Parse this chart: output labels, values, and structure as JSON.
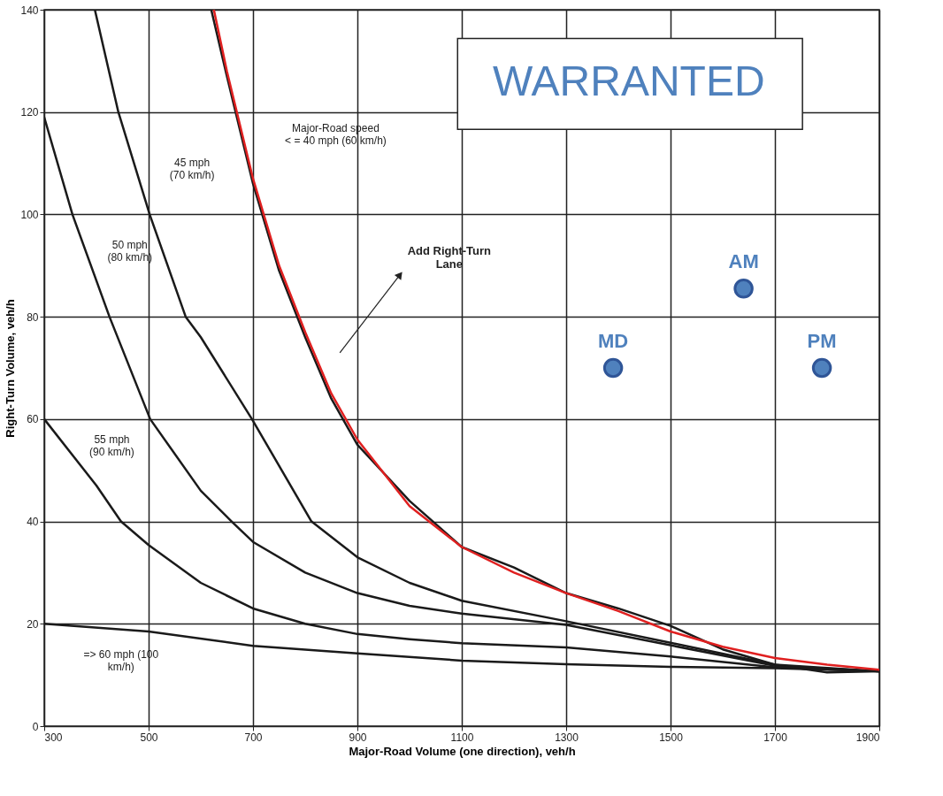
{
  "chart_data": {
    "type": "line",
    "xlabel": "Major-Road Volume (one direction), veh/h",
    "ylabel": "Right-Turn Volume, veh/h",
    "xlim": [
      300,
      1900
    ],
    "xticks": [
      300,
      500,
      700,
      900,
      1100,
      1300,
      1500,
      1700,
      1900
    ],
    "ylim": [
      0,
      140
    ],
    "yticks": [
      0,
      20,
      40,
      60,
      80,
      100,
      120,
      140
    ],
    "grid": true,
    "marker": "none",
    "line_style": "solid",
    "series": [
      {
        "color": "#1a1a1a",
        "x": [
          620,
          650,
          700,
          750,
          800,
          850,
          900,
          1000,
          1100,
          1200,
          1300,
          1400,
          1500,
          1600,
          1700,
          1800,
          1900
        ],
        "values": [
          140,
          127,
          106,
          89,
          76,
          64,
          55,
          44,
          35,
          31,
          26,
          23,
          19.6,
          15,
          12,
          10.5,
          10.7
        ]
      },
      {
        "color": "#1a1a1a",
        "x": [
          397,
          442,
          502,
          571,
          600,
          698,
          812,
          900,
          1000,
          1100,
          1300,
          1500,
          1700,
          1900
        ],
        "values": [
          140,
          120,
          100,
          80,
          76,
          60,
          40,
          33,
          28,
          24.5,
          20.5,
          16.3,
          12,
          10.7
        ]
      },
      {
        "color": "#1a1a1a",
        "x": [
          300,
          354,
          425,
          503,
          600,
          659,
          700,
          800,
          900,
          1000,
          1100,
          1300,
          1500,
          1700,
          1900
        ],
        "values": [
          119,
          100,
          80,
          60,
          46,
          40,
          36,
          30,
          26,
          23.5,
          22,
          19.8,
          15.8,
          11.8,
          10.7
        ]
      },
      {
        "color": "#1a1a1a",
        "x": [
          300,
          400,
          447,
          500,
          600,
          700,
          800,
          900,
          1000,
          1100,
          1300,
          1500,
          1700,
          1900
        ],
        "values": [
          60,
          47,
          40,
          35.4,
          28,
          23,
          20,
          18,
          17,
          16.2,
          15.4,
          13.6,
          11.5,
          10.7
        ]
      },
      {
        "color": "#1a1a1a",
        "x": [
          300,
          500,
          700,
          900,
          1100,
          1300,
          1500,
          1700,
          1900
        ],
        "values": [
          20,
          18.5,
          15.7,
          14.2,
          12.8,
          12.1,
          11.6,
          11.3,
          10.7
        ]
      },
      {
        "color": "#e02020",
        "x": [
          625,
          650,
          700,
          750,
          800,
          850,
          900,
          1000,
          1100,
          1200,
          1300,
          1400,
          1500,
          1600,
          1700,
          1800,
          1900
        ],
        "values": [
          140,
          128,
          107,
          90,
          77,
          65,
          56,
          43,
          35,
          30,
          26,
          22.5,
          18.5,
          15.5,
          13.3,
          12,
          11
        ]
      },
      {
        "type": "scatter",
        "marker": "circle",
        "color": "#4f81bd",
        "x": [
          1390,
          1640,
          1790
        ],
        "values": [
          70,
          85.5,
          70
        ]
      }
    ],
    "annotations": [
      "Major-Road speed\n< = 40 mph (60 km/h)",
      "45 mph\n(70 km/h)",
      "50 mph\n(80 km/h)",
      "55 mph\n(90 km/h)",
      "=> 60 mph (100\nkm/h)",
      "WARRANTED",
      "Add Right-Turn\nLane",
      {
        "text": "MD",
        "x": 1390,
        "y": 70
      },
      {
        "text": "AM",
        "x": 1640,
        "y": 85.5
      },
      {
        "text": "PM",
        "x": 1790,
        "y": 70
      }
    ]
  }
}
